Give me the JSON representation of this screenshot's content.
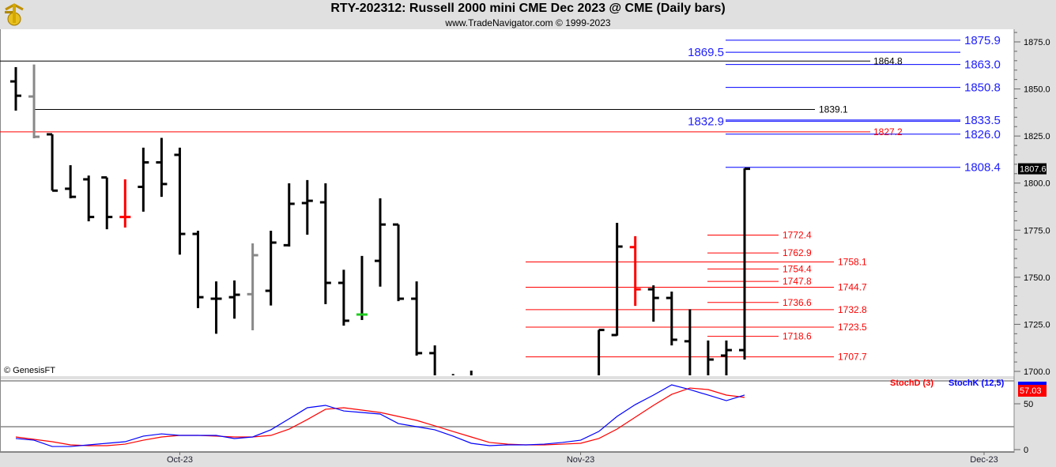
{
  "header": {
    "title": "RTY-202312:  Russell 2000 mini CME Dec 2023 @ CME  (Daily bars)",
    "subtitle": "www.TradeNavigator.com © 1999-2023"
  },
  "watermark": "© GenesisFT",
  "chart_data": [
    {
      "type": "ohlc",
      "ylim": [
        1700,
        1880
      ],
      "y_ticks": [
        "1875.0",
        "1850.0",
        "1825.0",
        "1800.0",
        "1775.0",
        "1750.0",
        "1725.0",
        "1700.0"
      ],
      "x_ticks": [
        {
          "label": "Oct-23",
          "date": "2023-10-02"
        },
        {
          "label": "Nov-23",
          "date": "2023-11-01"
        },
        {
          "label": "Dec-23",
          "date": "2023-12-01"
        }
      ],
      "last_price": "1807.6",
      "bars": [
        {
          "date": "2023-09-19",
          "o": 1854,
          "h": 1861.6,
          "l": 1838.5,
          "c": 1846.4,
          "color": "#000000"
        },
        {
          "date": "2023-09-20",
          "o": 1846,
          "h": 1863,
          "l": 1823.8,
          "c": 1824.6,
          "color": "#888888"
        },
        {
          "date": "2023-09-21",
          "o": 1825.9,
          "h": 1825.9,
          "l": 1796,
          "c": 1796,
          "color": "#000000"
        },
        {
          "date": "2023-09-22",
          "o": 1797,
          "h": 1809.5,
          "l": 1791.9,
          "c": 1792.7,
          "color": "#000000"
        },
        {
          "date": "2023-09-25",
          "o": 1802,
          "h": 1804,
          "l": 1779.7,
          "c": 1782,
          "color": "#000000"
        },
        {
          "date": "2023-09-26",
          "o": 1803,
          "h": 1803,
          "l": 1775.5,
          "c": 1782,
          "color": "#000000"
        },
        {
          "date": "2023-09-27",
          "o": 1782,
          "h": 1802,
          "l": 1776.4,
          "c": 1782,
          "color": "#ff0000"
        },
        {
          "date": "2023-09-28",
          "o": 1798,
          "h": 1818.8,
          "l": 1784.8,
          "c": 1811,
          "color": "#000000"
        },
        {
          "date": "2023-09-29",
          "o": 1811,
          "h": 1824,
          "l": 1792.7,
          "c": 1799.5,
          "color": "#000000"
        },
        {
          "date": "2023-10-02",
          "o": 1815,
          "h": 1818.8,
          "l": 1762,
          "c": 1773,
          "color": "#000000"
        },
        {
          "date": "2023-10-03",
          "o": 1773,
          "h": 1774.7,
          "l": 1733.6,
          "c": 1739.4,
          "color": "#000000"
        },
        {
          "date": "2023-10-04",
          "o": 1738.6,
          "h": 1747.8,
          "l": 1720,
          "c": 1738.6,
          "color": "#000000"
        },
        {
          "date": "2023-10-05",
          "o": 1739.4,
          "h": 1748.3,
          "l": 1728,
          "c": 1740.7,
          "color": "#000000"
        },
        {
          "date": "2023-10-06",
          "o": 1741,
          "h": 1768,
          "l": 1721.8,
          "c": 1761.7,
          "color": "#888888"
        },
        {
          "date": "2023-10-09",
          "o": 1742.8,
          "h": 1774.7,
          "l": 1735,
          "c": 1768.4,
          "color": "#000000"
        },
        {
          "date": "2023-10-10",
          "o": 1767,
          "h": 1799.9,
          "l": 1766.3,
          "c": 1789,
          "color": "#000000"
        },
        {
          "date": "2023-10-11",
          "o": 1789.4,
          "h": 1801.6,
          "l": 1772.6,
          "c": 1790.6,
          "color": "#000000"
        },
        {
          "date": "2023-10-12",
          "o": 1789.8,
          "h": 1799.9,
          "l": 1735.7,
          "c": 1747,
          "color": "#000000"
        },
        {
          "date": "2023-10-13",
          "o": 1747,
          "h": 1754,
          "l": 1724.3,
          "c": 1726.9,
          "color": "#000000"
        },
        {
          "date": "2023-10-16",
          "o": 1730.2,
          "h": 1761.3,
          "l": 1727.3,
          "c": 1730.2,
          "color": "#000000",
          "tick_color": "#22cc22"
        },
        {
          "date": "2023-10-17",
          "o": 1758.7,
          "h": 1791.9,
          "l": 1745,
          "c": 1778,
          "color": "#000000"
        },
        {
          "date": "2023-10-18",
          "o": 1778,
          "h": 1778,
          "l": 1737.3,
          "c": 1738.6,
          "color": "#000000"
        },
        {
          "date": "2023-10-19",
          "o": 1738.6,
          "h": 1747.8,
          "l": 1708.4,
          "c": 1709.7,
          "color": "#000000"
        },
        {
          "date": "2023-10-20",
          "o": 1709.7,
          "h": 1713.8,
          "l": null,
          "c": null,
          "color": "#000000"
        },
        {
          "date": "2023-10-23",
          "o": null,
          "h": 1698.6,
          "l": null,
          "c": null,
          "color": "#000000"
        },
        {
          "date": "2023-10-24",
          "o": null,
          "h": 1700.4,
          "l": null,
          "c": null,
          "color": "#000000"
        },
        {
          "date": "2023-11-02",
          "o": null,
          "h": 1722,
          "l": null,
          "c": 1722,
          "color": "#000000"
        },
        {
          "date": "2023-11-03",
          "o": 1719.3,
          "h": 1778.9,
          "l": 1719,
          "c": 1766.3,
          "color": "#000000"
        },
        {
          "date": "2023-11-06",
          "o": 1766,
          "h": 1771.8,
          "l": 1734.8,
          "c": 1743.6,
          "color": "#ff0000"
        },
        {
          "date": "2023-11-07",
          "o": 1743.6,
          "h": 1745.7,
          "l": 1726.4,
          "c": 1739,
          "color": "#000000"
        },
        {
          "date": "2023-11-08",
          "o": 1739,
          "h": 1742.4,
          "l": 1713.8,
          "c": 1716.8,
          "color": "#000000"
        },
        {
          "date": "2023-11-09",
          "o": 1716,
          "h": 1733,
          "l": null,
          "c": null,
          "color": "#000000"
        },
        {
          "date": "2023-11-10",
          "o": null,
          "h": 1716.4,
          "l": null,
          "c": 1706.3,
          "color": "#000000"
        },
        {
          "date": "2023-11-13",
          "o": 1708.4,
          "h": 1716.4,
          "l": null,
          "c": 1711.3,
          "color": "#000000"
        },
        {
          "date": "2023-11-14",
          "o": 1711.3,
          "h": 1807.8,
          "l": 1706.3,
          "c": 1807.6,
          "color": "#000000"
        }
      ],
      "levels": [
        {
          "value": 1875.9,
          "label": "1875.9",
          "color": "#0000ff"
        },
        {
          "value": 1869.5,
          "label": "1869.5",
          "color": "#0000ff"
        },
        {
          "value": 1864.8,
          "label": "1864.8",
          "color": "#000000"
        },
        {
          "value": 1863.0,
          "label": "1863.0",
          "color": "#0000ff"
        },
        {
          "value": 1850.8,
          "label": "1850.8",
          "color": "#0000ff"
        },
        {
          "value": 1839.1,
          "label": "1839.1",
          "color": "#000000"
        },
        {
          "value": 1833.5,
          "label": "1833.5",
          "color": "#0000ff"
        },
        {
          "value": 1832.9,
          "label": "1832.9",
          "color": "#0000ff"
        },
        {
          "value": 1827.2,
          "label": "1827.2",
          "color": "#ff0000"
        },
        {
          "value": 1826.0,
          "label": "1826.0",
          "color": "#0000ff"
        },
        {
          "value": 1808.4,
          "label": "1808.4",
          "color": "#0000ff"
        },
        {
          "value": 1772.4,
          "label": "1772.4",
          "color": "#ff0000"
        },
        {
          "value": 1762.9,
          "label": "1762.9",
          "color": "#ff0000"
        },
        {
          "value": 1758.1,
          "label": "1758.1",
          "color": "#ff0000"
        },
        {
          "value": 1754.4,
          "label": "1754.4",
          "color": "#ff0000"
        },
        {
          "value": 1747.8,
          "label": "1747.8",
          "color": "#ff0000"
        },
        {
          "value": 1744.7,
          "label": "1744.7",
          "color": "#ff0000"
        },
        {
          "value": 1736.6,
          "label": "1736.6",
          "color": "#ff0000"
        },
        {
          "value": 1732.8,
          "label": "1732.8",
          "color": "#ff0000"
        },
        {
          "value": 1723.5,
          "label": "1723.5",
          "color": "#ff0000"
        },
        {
          "value": 1718.6,
          "label": "1718.6",
          "color": "#ff0000"
        },
        {
          "value": 1707.7,
          "label": "1707.7",
          "color": "#ff0000"
        }
      ]
    },
    {
      "type": "line",
      "ylim": [
        0,
        75
      ],
      "y_ticks": [
        "50",
        "0"
      ],
      "grid_levels": [
        75,
        25
      ],
      "last_value": "57.03",
      "series": [
        {
          "name": "StochD (3)",
          "color": "#ff0000",
          "values": [
            13.8,
            11.2,
            8.6,
            5.2,
            4.3,
            4.3,
            6.0,
            10.3,
            13.8,
            15.5,
            15.5,
            14.7,
            13.8,
            13.8,
            15.5,
            22.4,
            32.8,
            44.0,
            45.7,
            43.1,
            40.5,
            36.2,
            31.9,
            25.9,
            19.8,
            13.8,
            7.8,
            6.0,
            5.2,
            5.2,
            6.0,
            6.9,
            12.1,
            22.4,
            35.3,
            48.3,
            60.3,
            67.2,
            65.5,
            59.5,
            57.03
          ]
        },
        {
          "name": "StochK (12,5)",
          "color": "#0000ff",
          "values": [
            12.1,
            10.3,
            3.4,
            3.4,
            5.2,
            6.9,
            8.6,
            14.7,
            17.2,
            15.5,
            15.5,
            15.5,
            12.1,
            13.8,
            21.6,
            33.6,
            45.7,
            48.3,
            42.2,
            40.5,
            38.8,
            28.4,
            25.0,
            21.6,
            14.7,
            6.9,
            4.3,
            5.2,
            5.2,
            6.0,
            7.8,
            10.3,
            19.8,
            36.2,
            49.1,
            59.5,
            70.7,
            65.5,
            59.5,
            53.4,
            59.5
          ]
        }
      ],
      "start_date": "2023-09-19"
    }
  ]
}
